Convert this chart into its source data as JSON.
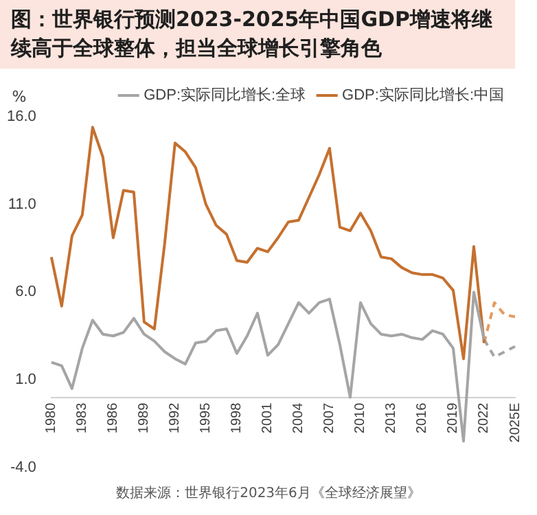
{
  "chart_data": {
    "type": "line",
    "title": "图：世界银行预测2023-2025年中国GDP增速将继续高于全球整体，担当全球增长引擎角色",
    "ylabel": "%",
    "categories": [
      "1980",
      null,
      null,
      "1983",
      null,
      null,
      "1986",
      null,
      null,
      "1989",
      null,
      null,
      "1992",
      null,
      null,
      "1995",
      null,
      null,
      "1998",
      null,
      null,
      "2001",
      null,
      null,
      "2004",
      null,
      null,
      "2007",
      null,
      null,
      "2010",
      null,
      null,
      "2013",
      null,
      null,
      "2016",
      null,
      null,
      "2019",
      null,
      null,
      "2022",
      null,
      null,
      "2025E"
    ],
    "series": [
      {
        "name": "GDP:实际同比增长:全球",
        "color": "#a5a5a5",
        "line_style": "solid",
        "values": [
          2.0,
          1.8,
          0.5,
          2.8,
          4.4,
          3.6,
          3.5,
          3.7,
          4.5,
          3.6,
          3.2,
          2.6,
          2.2,
          1.9,
          3.1,
          3.2,
          3.8,
          3.9,
          2.5,
          3.5,
          4.8,
          2.4,
          3.0,
          4.2,
          5.4,
          4.8,
          5.4,
          5.6,
          3.0,
          0.0,
          5.4,
          4.2,
          3.6,
          3.5,
          3.6,
          3.4,
          3.3,
          3.8,
          3.6,
          2.8,
          -2.5,
          6.0,
          3.3,
          null,
          null,
          null
        ]
      },
      {
        "name": "GDP:实际同比增长:中国",
        "color": "#c5702f",
        "line_style": "solid",
        "values": [
          8.0,
          5.2,
          9.2,
          10.4,
          15.4,
          13.7,
          9.1,
          11.8,
          11.7,
          4.3,
          3.9,
          8.8,
          14.5,
          14.0,
          13.1,
          11.0,
          9.8,
          9.3,
          7.8,
          7.7,
          8.5,
          8.3,
          9.1,
          10.0,
          10.1,
          11.4,
          12.7,
          14.2,
          9.7,
          9.5,
          10.5,
          9.5,
          8.0,
          7.9,
          7.4,
          7.1,
          7.0,
          7.0,
          6.8,
          6.1,
          2.2,
          8.6,
          3.1,
          null,
          null,
          null
        ]
      },
      {
        "color": "#a5a5a5",
        "line_style": "dashed",
        "values": [
          null,
          null,
          null,
          null,
          null,
          null,
          null,
          null,
          null,
          null,
          null,
          null,
          null,
          null,
          null,
          null,
          null,
          null,
          null,
          null,
          null,
          null,
          null,
          null,
          null,
          null,
          null,
          null,
          null,
          null,
          null,
          null,
          null,
          null,
          null,
          null,
          null,
          null,
          null,
          null,
          null,
          null,
          3.3,
          2.3,
          2.6,
          2.9
        ]
      },
      {
        "color": "#e59a5f",
        "line_style": "dashed",
        "values": [
          null,
          null,
          null,
          null,
          null,
          null,
          null,
          null,
          null,
          null,
          null,
          null,
          null,
          null,
          null,
          null,
          null,
          null,
          null,
          null,
          null,
          null,
          null,
          null,
          null,
          null,
          null,
          null,
          null,
          null,
          null,
          null,
          null,
          null,
          null,
          null,
          null,
          null,
          null,
          null,
          null,
          null,
          3.1,
          5.4,
          4.7,
          4.6
        ]
      }
    ],
    "ylim": [
      -4,
      16
    ],
    "yticks": [
      {
        "value": -4,
        "label": "-4.0"
      },
      {
        "value": 1,
        "label": "1.0"
      },
      {
        "value": 6,
        "label": "6.0"
      },
      {
        "value": 11,
        "label": "11.0"
      },
      {
        "value": 16,
        "label": "16.0"
      }
    ],
    "grid": false,
    "legend": "top",
    "marker": "none",
    "annotations": [
      "数据来源：世界银行2023年6月《全球经济展望》"
    ]
  }
}
